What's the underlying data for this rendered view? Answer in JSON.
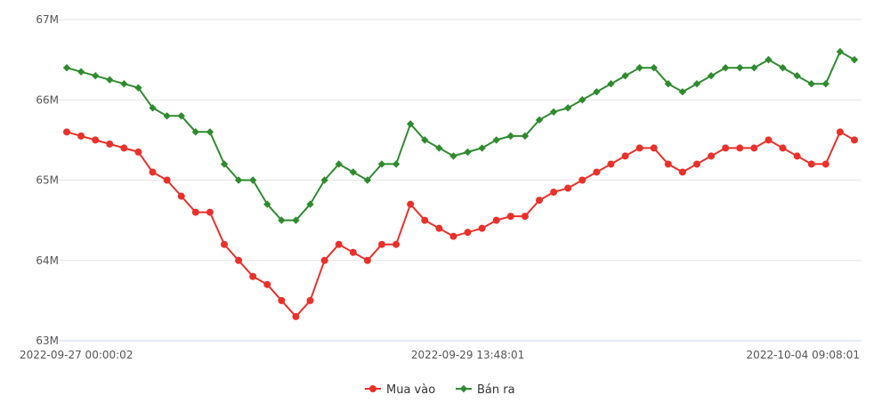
{
  "chart_data": {
    "type": "line",
    "title": "",
    "xlabel": "",
    "ylabel": "",
    "ylim": [
      63000000,
      67000000
    ],
    "y_ticks": [
      {
        "value": 63000000,
        "label": "63M"
      },
      {
        "value": 64000000,
        "label": "64M"
      },
      {
        "value": 65000000,
        "label": "65M"
      },
      {
        "value": 66000000,
        "label": "66M"
      },
      {
        "value": 67000000,
        "label": "67M"
      }
    ],
    "x_tick_labels": [
      {
        "index": 0,
        "label": "2022-09-27 00:00:02"
      },
      {
        "index": 28,
        "label": "2022-09-29 13:48:01"
      },
      {
        "index": 55,
        "label": "2022-10-04 09:08:01"
      }
    ],
    "point_count": 56,
    "grid": true,
    "legend_position": "bottom-center",
    "series": [
      {
        "name": "Mua vào",
        "color": "#e8312a",
        "marker": "circle",
        "values": [
          65600000,
          65550000,
          65500000,
          65450000,
          65400000,
          65350000,
          65100000,
          65000000,
          64800000,
          64600000,
          64600000,
          64200000,
          64000000,
          63800000,
          63700000,
          63500000,
          63300000,
          63500000,
          64000000,
          64200000,
          64100000,
          64000000,
          64200000,
          64200000,
          64700000,
          64500000,
          64400000,
          64300000,
          64350000,
          64400000,
          64500000,
          64550000,
          64550000,
          64750000,
          64850000,
          64900000,
          65000000,
          65100000,
          65200000,
          65300000,
          65400000,
          65400000,
          65200000,
          65100000,
          65200000,
          65300000,
          65400000,
          65400000,
          65400000,
          65500000,
          65400000,
          65300000,
          65200000,
          65200000,
          65600000,
          65500000
        ]
      },
      {
        "name": "Bán ra",
        "color": "#2e8b2e",
        "marker": "diamond",
        "values": [
          66400000,
          66350000,
          66300000,
          66250000,
          66200000,
          66150000,
          65900000,
          65800000,
          65800000,
          65600000,
          65600000,
          65200000,
          65000000,
          65000000,
          64700000,
          64500000,
          64500000,
          64700000,
          65000000,
          65200000,
          65100000,
          65000000,
          65200000,
          65200000,
          65700000,
          65500000,
          65400000,
          65300000,
          65350000,
          65400000,
          65500000,
          65550000,
          65550000,
          65750000,
          65850000,
          65900000,
          66000000,
          66100000,
          66200000,
          66300000,
          66400000,
          66400000,
          66200000,
          66100000,
          66200000,
          66300000,
          66400000,
          66400000,
          66400000,
          66500000,
          66400000,
          66300000,
          66200000,
          66200000,
          66600000,
          66500000
        ]
      }
    ]
  }
}
